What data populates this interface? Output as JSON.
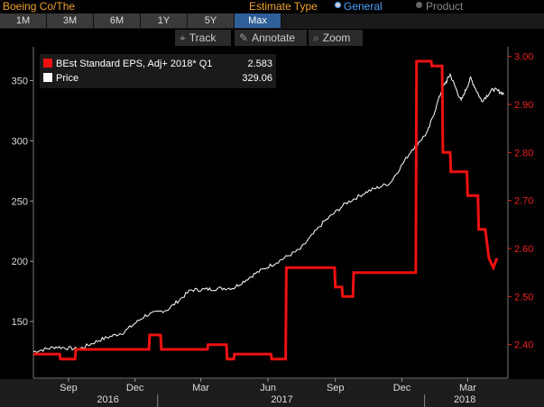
{
  "app": {
    "title": "Boeing Co/The"
  },
  "estimate_type": {
    "label": "Estimate Type",
    "options": [
      "General",
      "Product"
    ],
    "selected": "General"
  },
  "ranges": {
    "items": [
      "1M",
      "3M",
      "6M",
      "1Y",
      "5Y",
      "Max"
    ],
    "active": "Max"
  },
  "tools": {
    "track": "Track",
    "annotate": "Annotate",
    "zoom": "Zoom"
  },
  "colors": {
    "eps": "#ee1111",
    "price": "#ffffff",
    "accent": "#f0a030",
    "selected": "#2f5f9a"
  },
  "icons": {
    "track": "crosshair-icon",
    "annotate": "pencil-icon",
    "zoom": "magnifier-icon"
  },
  "legend": {
    "eps_label": "BEst Standard EPS, Adj+ 2018* Q1",
    "eps_value": "2.583",
    "price_label": "Price",
    "price_value": "329.06"
  },
  "chart_data": {
    "type": "line",
    "x_axis": {
      "months": [
        "Sep",
        "Dec",
        "Mar",
        "Jun",
        "Sep",
        "Dec",
        "Mar"
      ],
      "years": [
        "2016",
        "2017",
        "2018"
      ],
      "range": [
        "2016-07-15",
        "2018-04-25"
      ]
    },
    "y_left": {
      "ticks": [
        150,
        200,
        250,
        300,
        350
      ],
      "range": [
        103,
        378
      ]
    },
    "y_right": {
      "ticks": [
        "2.40",
        "2.50",
        "2.60",
        "2.70",
        "2.80",
        "2.90",
        "3.00"
      ],
      "range": [
        2.33,
        3.02
      ]
    },
    "series": [
      {
        "name": "Price",
        "axis": "left",
        "x": [
          "2016-07-15",
          "2016-08-15",
          "2016-09-15",
          "2016-10-15",
          "2016-11-15",
          "2016-12-15",
          "2017-01-15",
          "2017-02-15",
          "2017-03-15",
          "2017-04-15",
          "2017-05-15",
          "2017-06-15",
          "2017-07-15",
          "2017-08-15",
          "2017-09-15",
          "2017-10-15",
          "2017-11-15",
          "2017-12-15",
          "2018-01-05",
          "2018-01-25",
          "2018-02-05",
          "2018-02-20",
          "2018-03-05",
          "2018-03-20",
          "2018-04-05",
          "2018-04-20"
        ],
        "values": [
          125,
          129,
          127,
          135,
          141,
          155,
          160,
          176,
          177,
          178,
          190,
          200,
          210,
          232,
          248,
          258,
          265,
          293,
          307,
          343,
          355,
          333,
          352,
          333,
          343,
          339
        ]
      },
      {
        "name": "BEst Standard EPS, Adj+ 2018* Q1",
        "axis": "right",
        "x": [
          "2016-07-15",
          "2016-08-20",
          "2016-08-21",
          "2016-09-10",
          "2016-09-11",
          "2016-12-20",
          "2016-12-21",
          "2017-01-05",
          "2017-01-06",
          "2017-03-10",
          "2017-03-11",
          "2017-04-05",
          "2017-04-06",
          "2017-04-15",
          "2017-04-16",
          "2017-06-05",
          "2017-06-06",
          "2017-06-25",
          "2017-06-26",
          "2017-07-15",
          "2017-07-16",
          "2017-08-31",
          "2017-09-01",
          "2017-09-10",
          "2017-09-11",
          "2017-09-25",
          "2017-09-26",
          "2017-10-10",
          "2017-10-11",
          "2017-12-20",
          "2017-12-21",
          "2018-01-10",
          "2018-01-11",
          "2018-01-25",
          "2018-01-26",
          "2018-02-05",
          "2018-02-06",
          "2018-02-28",
          "2018-03-01",
          "2018-03-15",
          "2018-03-16",
          "2018-03-25",
          "2018-03-30",
          "2018-04-05",
          "2018-04-10"
        ],
        "values": [
          2.38,
          2.38,
          2.37,
          2.37,
          2.39,
          2.39,
          2.42,
          2.42,
          2.39,
          2.39,
          2.4,
          2.4,
          2.37,
          2.37,
          2.38,
          2.38,
          2.37,
          2.37,
          2.56,
          2.56,
          2.56,
          2.56,
          2.52,
          2.52,
          2.5,
          2.5,
          2.55,
          2.55,
          2.55,
          2.55,
          2.99,
          2.99,
          2.98,
          2.98,
          2.8,
          2.8,
          2.76,
          2.76,
          2.71,
          2.71,
          2.64,
          2.64,
          2.58,
          2.56,
          2.58
        ]
      }
    ],
    "legend_position": "top-left",
    "grid": false
  }
}
